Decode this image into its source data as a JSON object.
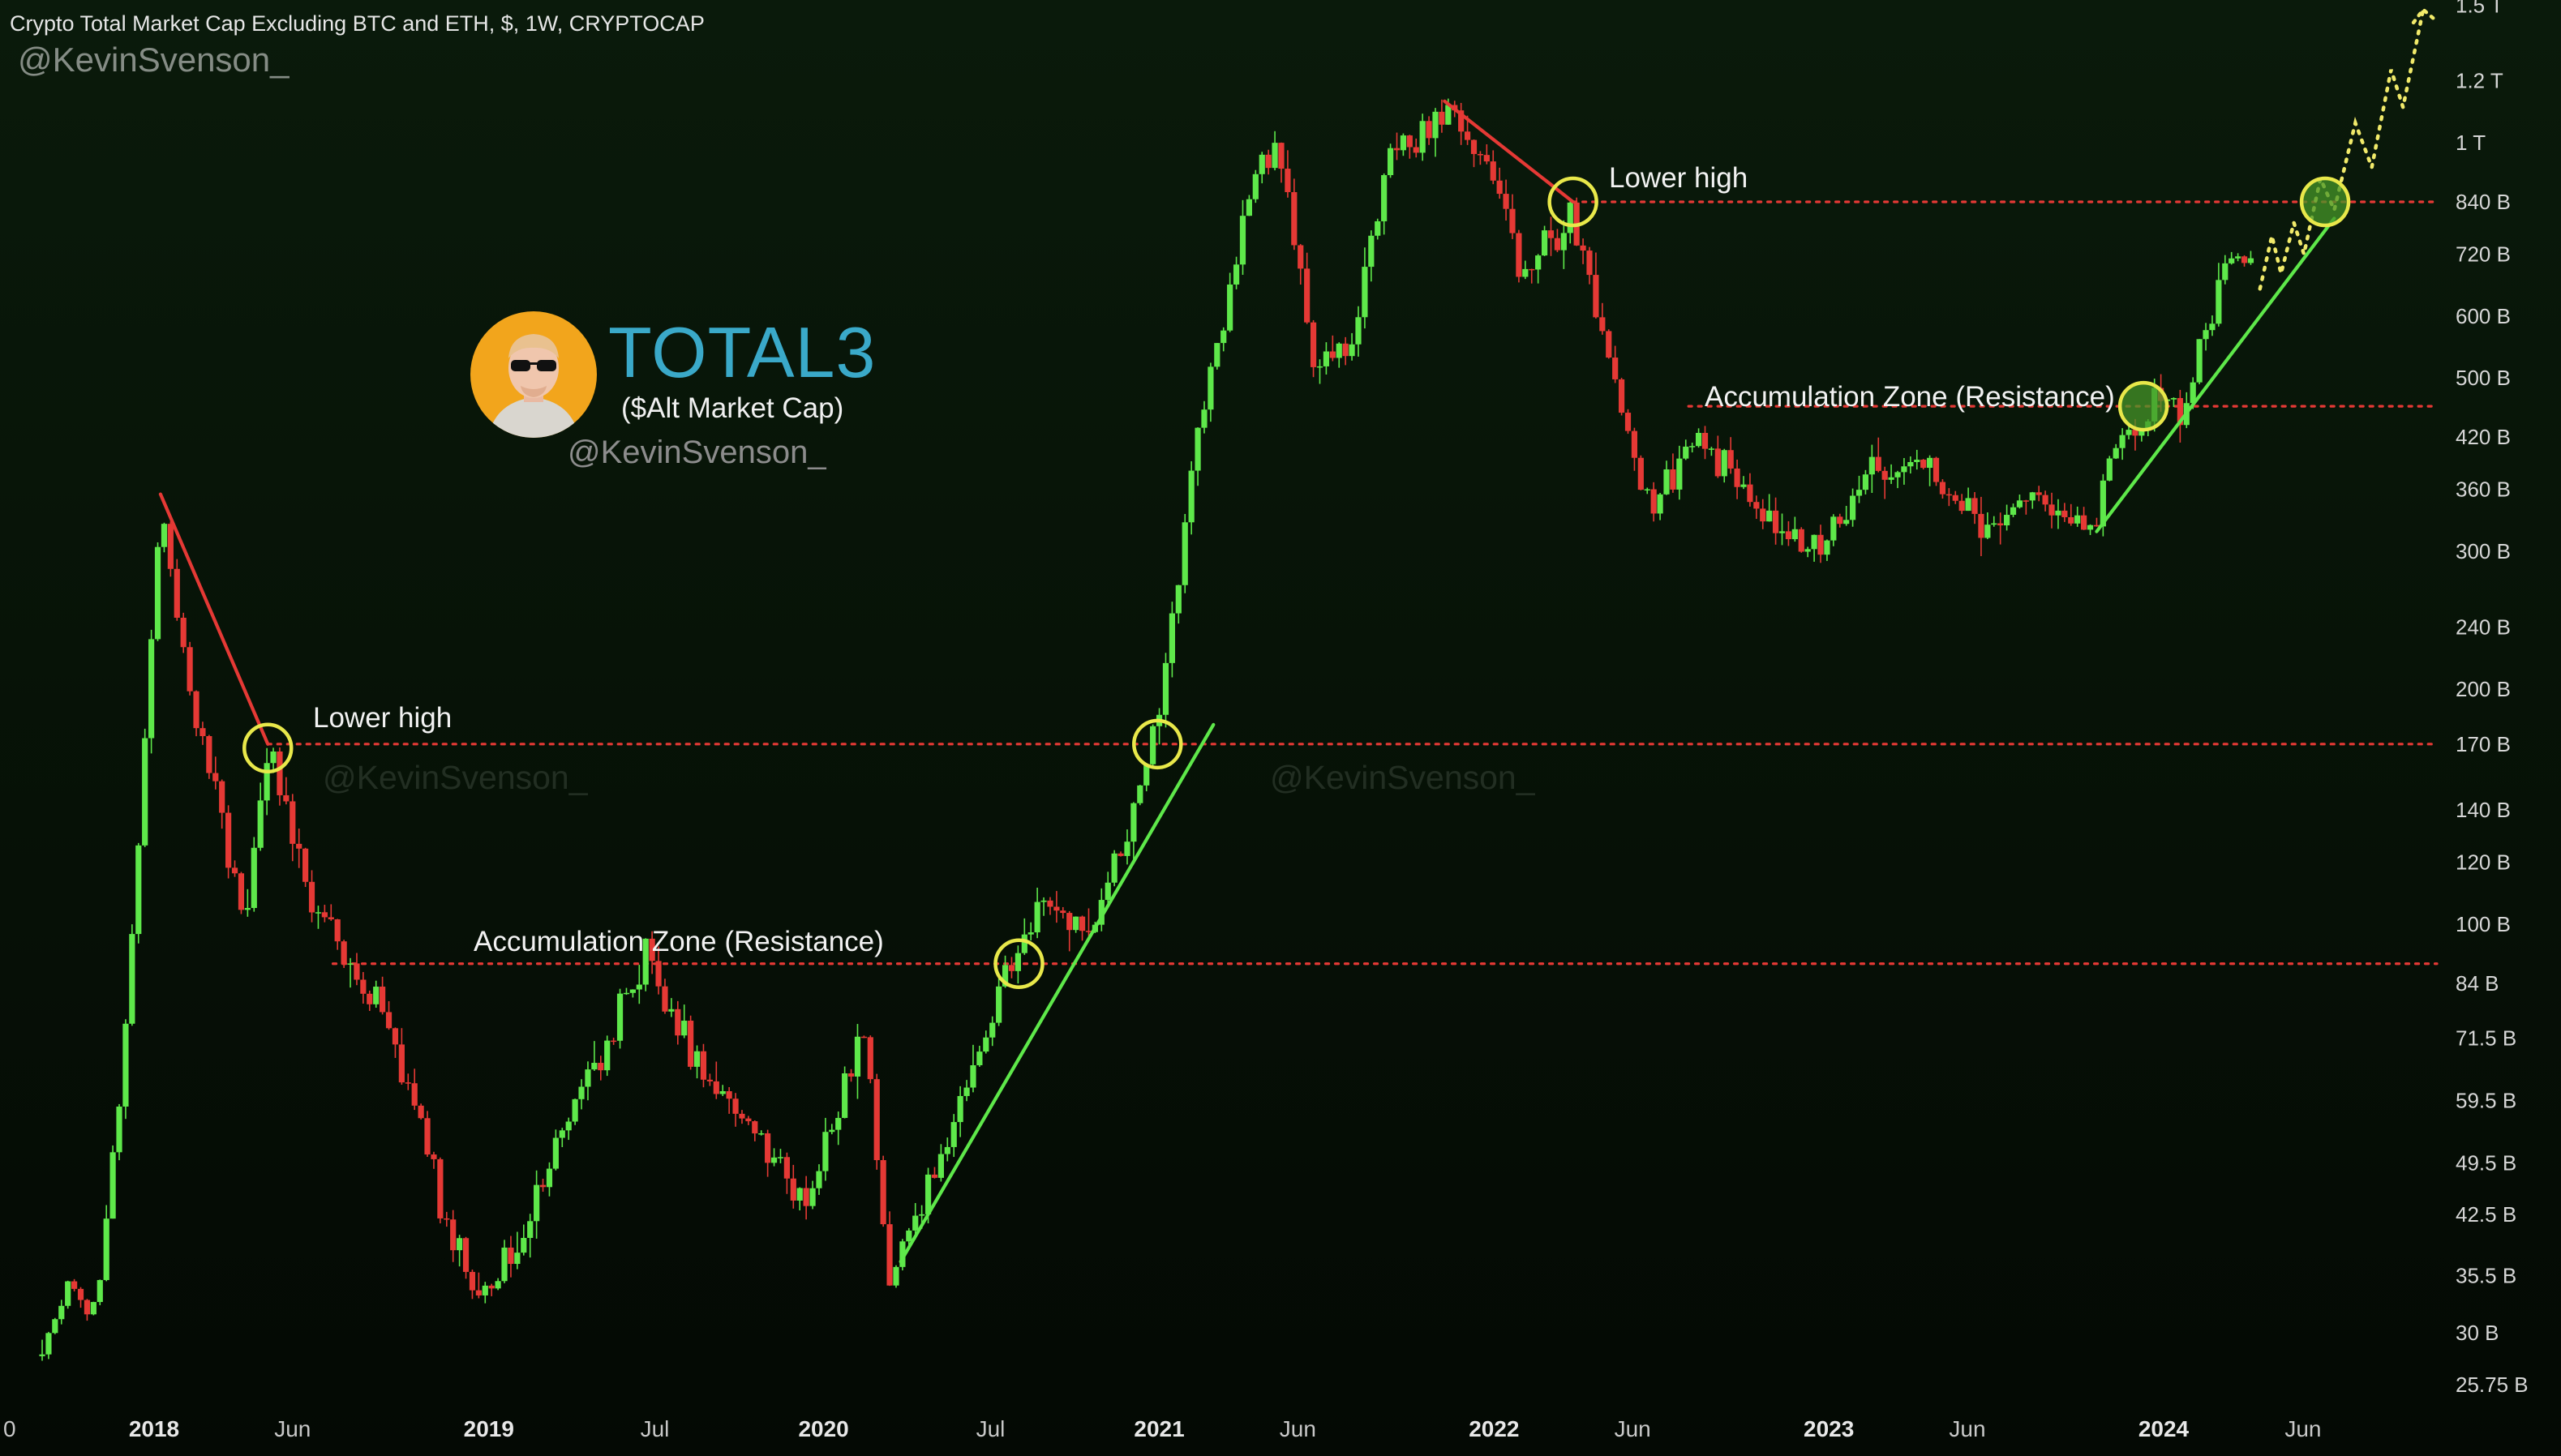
{
  "header": {
    "title": "Crypto Total Market Cap Excluding BTC and ETH, $, 1W, CRYPTOCAP",
    "watermark": "@KevinSvenson_"
  },
  "branding": {
    "title": "TOTAL3",
    "subtitle": "($Alt Market Cap)",
    "handle": "@KevinSvenson_",
    "avatar_icon": "avatar-portrait-sunglasses-icon",
    "title_color": "#3aa9c9",
    "avatar_bg": "#f2a51c"
  },
  "annotations": {
    "lower_high_1": "Lower high",
    "lower_high_2": "Lower high",
    "accumulation_1": "Accumulation Zone (Resistance)",
    "accumulation_2": "Accumulation Zone (Resistance)",
    "faint_watermark_1": "@KevinSvenson_",
    "faint_watermark_2": "@KevinSvenson_"
  },
  "chart_data": {
    "type": "candlestick",
    "scale": "log",
    "currency": "$",
    "interval": "1W",
    "ylim_billions": [
      24,
      1520
    ],
    "x_ticks": [
      {
        "label": "0",
        "date": "2017-09-01"
      },
      {
        "label": "2018",
        "date": "2018-01-01"
      },
      {
        "label": "Jun",
        "date": "2018-06-01"
      },
      {
        "label": "2019",
        "date": "2019-01-01"
      },
      {
        "label": "Jul",
        "date": "2019-07-01"
      },
      {
        "label": "2020",
        "date": "2020-01-01"
      },
      {
        "label": "Jul",
        "date": "2020-07-01"
      },
      {
        "label": "2021",
        "date": "2021-01-01"
      },
      {
        "label": "Jun",
        "date": "2021-06-01"
      },
      {
        "label": "2022",
        "date": "2022-01-01"
      },
      {
        "label": "Jun",
        "date": "2022-06-01"
      },
      {
        "label": "2023",
        "date": "2023-01-01"
      },
      {
        "label": "Jun",
        "date": "2023-06-01"
      },
      {
        "label": "2024",
        "date": "2024-01-01"
      },
      {
        "label": "Jun",
        "date": "2024-06-01"
      }
    ],
    "y_ticks": [
      {
        "label": "1.5 T",
        "value_b": 1500
      },
      {
        "label": "1.2 T",
        "value_b": 1200
      },
      {
        "label": "1 T",
        "value_b": 1000
      },
      {
        "label": "840 B",
        "value_b": 840
      },
      {
        "label": "720 B",
        "value_b": 720
      },
      {
        "label": "600 B",
        "value_b": 600
      },
      {
        "label": "500 B",
        "value_b": 500
      },
      {
        "label": "420 B",
        "value_b": 420
      },
      {
        "label": "360 B",
        "value_b": 360
      },
      {
        "label": "300 B",
        "value_b": 300
      },
      {
        "label": "240 B",
        "value_b": 240
      },
      {
        "label": "200 B",
        "value_b": 200
      },
      {
        "label": "170 B",
        "value_b": 170
      },
      {
        "label": "140 B",
        "value_b": 140
      },
      {
        "label": "120 B",
        "value_b": 120
      },
      {
        "label": "100 B",
        "value_b": 100
      },
      {
        "label": "84 B",
        "value_b": 84
      },
      {
        "label": "71.5 B",
        "value_b": 71.5
      },
      {
        "label": "59.5 B",
        "value_b": 59.5
      },
      {
        "label": "49.5 B",
        "value_b": 49.5
      },
      {
        "label": "42.5 B",
        "value_b": 42.5
      },
      {
        "label": "35.5 B",
        "value_b": 35.5
      },
      {
        "label": "30 B",
        "value_b": 30
      },
      {
        "label": "25.75 B",
        "value_b": 25.75
      }
    ],
    "price_path": [
      {
        "date": "2017-09-01",
        "value_b": 28
      },
      {
        "date": "2017-10-01",
        "value_b": 34
      },
      {
        "date": "2017-11-01",
        "value_b": 33
      },
      {
        "date": "2017-12-01",
        "value_b": 70
      },
      {
        "date": "2018-01-08",
        "value_b": 355
      },
      {
        "date": "2018-02-10",
        "value_b": 190
      },
      {
        "date": "2018-03-20",
        "value_b": 130
      },
      {
        "date": "2018-04-10",
        "value_b": 100
      },
      {
        "date": "2018-05-05",
        "value_b": 168
      },
      {
        "date": "2018-06-15",
        "value_b": 115
      },
      {
        "date": "2018-08-01",
        "value_b": 88
      },
      {
        "date": "2018-09-15",
        "value_b": 75
      },
      {
        "date": "2018-11-20",
        "value_b": 40
      },
      {
        "date": "2018-12-15",
        "value_b": 33
      },
      {
        "date": "2019-02-01",
        "value_b": 38
      },
      {
        "date": "2019-04-01",
        "value_b": 60
      },
      {
        "date": "2019-06-25",
        "value_b": 92
      },
      {
        "date": "2019-08-15",
        "value_b": 65
      },
      {
        "date": "2019-10-15",
        "value_b": 55
      },
      {
        "date": "2019-12-15",
        "value_b": 44
      },
      {
        "date": "2020-02-15",
        "value_b": 76
      },
      {
        "date": "2020-03-13",
        "value_b": 34
      },
      {
        "date": "2020-04-15",
        "value_b": 45
      },
      {
        "date": "2020-06-01",
        "value_b": 60
      },
      {
        "date": "2020-07-15",
        "value_b": 85
      },
      {
        "date": "2020-08-25",
        "value_b": 108
      },
      {
        "date": "2020-10-15",
        "value_b": 95
      },
      {
        "date": "2020-12-01",
        "value_b": 140
      },
      {
        "date": "2021-01-01",
        "value_b": 190
      },
      {
        "date": "2021-02-15",
        "value_b": 450
      },
      {
        "date": "2021-04-15",
        "value_b": 920
      },
      {
        "date": "2021-05-10",
        "value_b": 1020
      },
      {
        "date": "2021-06-20",
        "value_b": 520
      },
      {
        "date": "2021-08-01",
        "value_b": 560
      },
      {
        "date": "2021-09-05",
        "value_b": 960
      },
      {
        "date": "2021-11-08",
        "value_b": 1120
      },
      {
        "date": "2022-01-01",
        "value_b": 920
      },
      {
        "date": "2022-02-01",
        "value_b": 680
      },
      {
        "date": "2022-03-28",
        "value_b": 830
      },
      {
        "date": "2022-05-15",
        "value_b": 480
      },
      {
        "date": "2022-06-18",
        "value_b": 340
      },
      {
        "date": "2022-08-15",
        "value_b": 420
      },
      {
        "date": "2022-11-10",
        "value_b": 310
      },
      {
        "date": "2023-01-01",
        "value_b": 305
      },
      {
        "date": "2023-02-15",
        "value_b": 380
      },
      {
        "date": "2023-04-15",
        "value_b": 390
      },
      {
        "date": "2023-06-12",
        "value_b": 315
      },
      {
        "date": "2023-08-15",
        "value_b": 345
      },
      {
        "date": "2023-10-15",
        "value_b": 325
      },
      {
        "date": "2023-11-15",
        "value_b": 420
      },
      {
        "date": "2023-12-25",
        "value_b": 470
      },
      {
        "date": "2024-01-25",
        "value_b": 455
      },
      {
        "date": "2024-03-12",
        "value_b": 740
      },
      {
        "date": "2024-04-10",
        "value_b": 680
      }
    ],
    "horizontal_levels": [
      {
        "value_b": 170,
        "start_date": "2018-05-05",
        "color": "#e53935",
        "style": "dotted"
      },
      {
        "value_b": 89,
        "start_date": "2018-07-15",
        "color": "#e53935",
        "style": "dotted"
      },
      {
        "value_b": 840,
        "start_date": "2022-03-28",
        "color": "#e53935",
        "style": "dotted"
      },
      {
        "value_b": 460,
        "start_date": "2022-08-01",
        "color": "#e53935",
        "style": "dotted"
      }
    ],
    "trendlines": [
      {
        "color": "#e53935",
        "points": [
          {
            "date": "2018-01-08",
            "value_b": 355
          },
          {
            "date": "2018-05-05",
            "value_b": 170
          }
        ]
      },
      {
        "color": "#e53935",
        "points": [
          {
            "date": "2021-11-08",
            "value_b": 1130
          },
          {
            "date": "2022-03-28",
            "value_b": 840
          }
        ]
      },
      {
        "color": "#5ee84a",
        "points": [
          {
            "date": "2020-03-25",
            "value_b": 37
          },
          {
            "date": "2021-03-01",
            "value_b": 180
          }
        ]
      },
      {
        "color": "#5ee84a",
        "points": [
          {
            "date": "2023-10-20",
            "value_b": 318
          },
          {
            "date": "2024-07-05",
            "value_b": 800
          }
        ]
      }
    ],
    "circles": [
      {
        "date": "2018-05-05",
        "value_b": 168,
        "filled": false
      },
      {
        "date": "2020-08-01",
        "value_b": 89,
        "filled": false
      },
      {
        "date": "2020-12-30",
        "value_b": 170,
        "filled": false
      },
      {
        "date": "2022-03-28",
        "value_b": 840,
        "filled": false
      },
      {
        "date": "2023-12-10",
        "value_b": 460,
        "filled": true
      },
      {
        "date": "2024-06-25",
        "value_b": 840,
        "filled": true
      }
    ],
    "projection_path": [
      {
        "date": "2024-04-15",
        "value_b": 650
      },
      {
        "date": "2024-04-28",
        "value_b": 760
      },
      {
        "date": "2024-05-08",
        "value_b": 680
      },
      {
        "date": "2024-05-22",
        "value_b": 790
      },
      {
        "date": "2024-06-02",
        "value_b": 720
      },
      {
        "date": "2024-06-20",
        "value_b": 900
      },
      {
        "date": "2024-07-05",
        "value_b": 820
      },
      {
        "date": "2024-07-28",
        "value_b": 1060
      },
      {
        "date": "2024-08-15",
        "value_b": 930
      },
      {
        "date": "2024-09-05",
        "value_b": 1240
      },
      {
        "date": "2024-09-18",
        "value_b": 1110
      },
      {
        "date": "2024-10-10",
        "value_b": 1480
      }
    ],
    "colors": {
      "up": "#5ee84a",
      "down": "#e53935",
      "level": "#e53935",
      "circle": "#e8e84a",
      "projection": "#f1ea6a"
    }
  }
}
